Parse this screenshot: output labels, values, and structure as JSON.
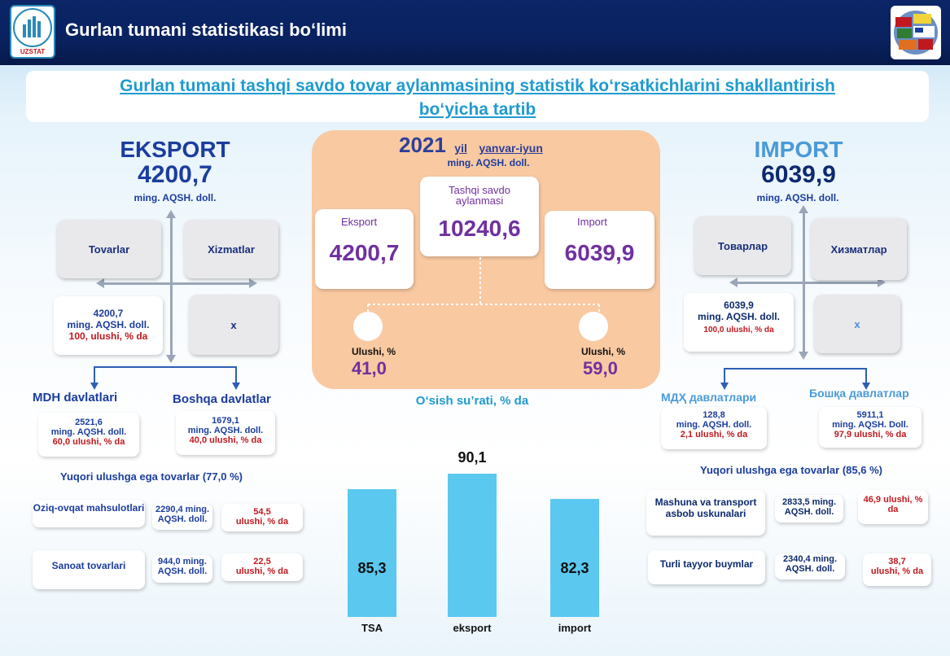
{
  "header": {
    "title": "Gurlan tumani statistikasi bo‘limi",
    "logo_text": "UZSTAT"
  },
  "subtitle": {
    "line1": "Gurlan tumani tashqi savdo tovar aylanmasining statistik ko‘rsatkichlarini shakllantirish",
    "line2": "bo‘yicha tartib"
  },
  "export": {
    "title": "EKSPORT",
    "value": "4200,7",
    "unit": "ming. AQSH. doll.",
    "goods_label": "Tovarlar",
    "services_label": "Xizmatlar",
    "goods_value": "4200,7",
    "goods_unit": "ming. AQSH. doll.",
    "goods_share": "100, ulushi, % da",
    "services_value": "x",
    "mdh_title": "MDH davlatlari",
    "mdh_value": "2521,6",
    "mdh_unit": "ming. AQSH.  doll.",
    "mdh_share": "60,0 ulushi, % da",
    "other_title": "Boshqa davlatlar",
    "other_value": "1679,1",
    "other_unit": "ming. AQSH.  doll.",
    "other_share": "40,0 ulushi, % da",
    "top_goods_title": "Yuqori ulushga ega tovarlar (77,0  %)",
    "items": [
      {
        "name": "Oziq-ovqat mahsulotlari",
        "value": "2290,4 ming. AQSH. doll.",
        "share_value": "54,5",
        "share_label": "ulushi, % da"
      },
      {
        "name": "Sanoat tovarlari",
        "value": "944,0 ming. AQSH. doll.",
        "share_value": "22,5",
        "share_label": "ulushi, % da"
      }
    ]
  },
  "center": {
    "year": "2021",
    "year_suffix": "yil",
    "period": "yanvar-iyun",
    "unit": "ming. AQSH. doll.",
    "total_label": "Tashqi savdo aylanmasi",
    "total_value": "10240,6",
    "export_label": "Eksport",
    "export_value": "4200,7",
    "import_label": "Import",
    "import_value": "6039,9",
    "export_share_label": "Ulushi, %",
    "export_share_value": "41,0",
    "import_share_label": "Ulushi, %",
    "import_share_value": "59,0"
  },
  "import": {
    "title": "IMPORT",
    "value": "6039,9",
    "unit": "ming. AQSH. doll.",
    "goods_label": "Товарлар",
    "services_label": "Хизматлар",
    "goods_value": "6039,9",
    "goods_unit": "ming. AQSH. doll.",
    "goods_share": "100,0 ulushi, % da",
    "services_value": "x",
    "mdh_title": "МДҲ давлатлари",
    "mdh_value": "128,8",
    "mdh_unit": "ming. AQSH.  doll.",
    "mdh_share": "2,1 ulushi, % da",
    "other_title": "Бошқа давлатлар",
    "other_value": "5911,1",
    "other_unit": "ming. AQSH.  Doll.",
    "other_share": "97,9 ulushi, % da",
    "top_goods_title": "Yuqori ulushga ega tovarlar (85,6  %)",
    "items": [
      {
        "name": "Mashuna va transport asbob uskunalari",
        "value": "2833,5 ming. AQSH. doll.",
        "share_value": "46,9",
        "share_label": "ulushi, % da"
      },
      {
        "name": "Turli  tayyor buymlar",
        "value": "2340,4 ming. AQSH. doll.",
        "share_value": "38,7",
        "share_label": "ulushi, % da"
      }
    ]
  },
  "chart_data": {
    "type": "bar",
    "title": "O‘sish su’rati, %  da",
    "categories": [
      "TSA",
      "eksport",
      "import"
    ],
    "values": [
      85.3,
      90.1,
      82.3
    ],
    "value_labels": [
      "85,3",
      "90,1",
      "82,3"
    ],
    "ylim": [
      0,
      100
    ],
    "bar_color": "#5bc8f0"
  },
  "colors": {
    "header_bg": "#0a2260",
    "center_panel": "#f9c9a2",
    "accent_blue": "#1a3d9e",
    "accent_red": "#c0181e",
    "purple": "#7030a0"
  }
}
